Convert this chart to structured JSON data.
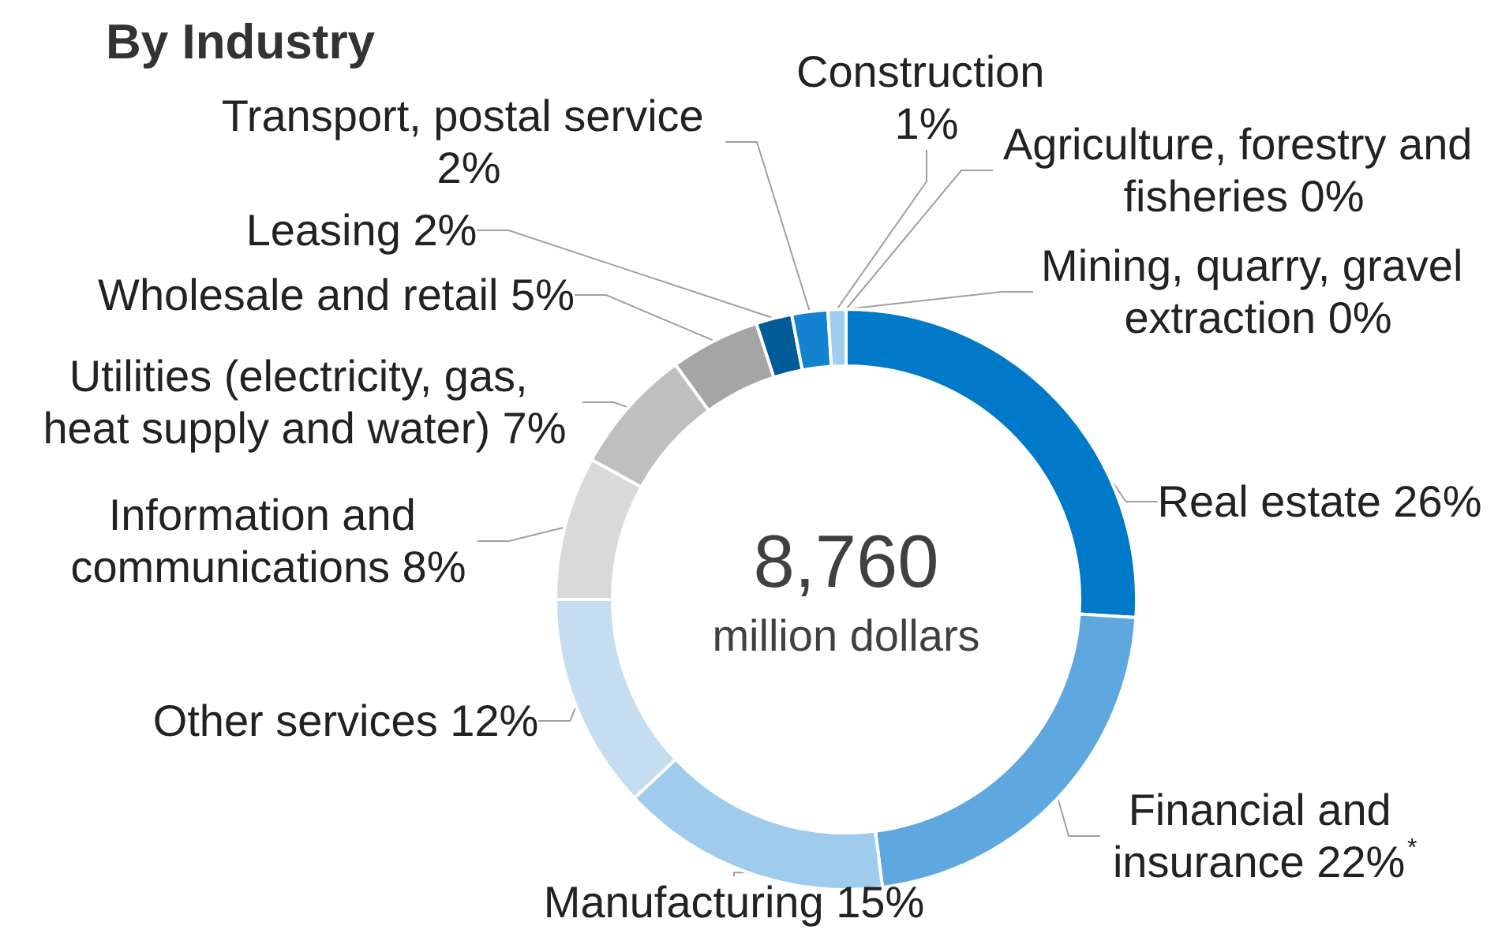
{
  "chart_data": {
    "type": "donut",
    "title": "By Industry",
    "categories": [
      "Real estate",
      "Financial and insurance",
      "Manufacturing",
      "Other services",
      "Information and communications",
      "Utilities (electricity, gas, heat supply and water)",
      "Wholesale and retail",
      "Leasing",
      "Transport, postal service",
      "Construction",
      "Agriculture, forestry and fisheries",
      "Mining, quarry, gravel extraction"
    ],
    "values": [
      26,
      22,
      15,
      12,
      8,
      7,
      5,
      2,
      2,
      1,
      0,
      0
    ],
    "value_labels": [
      "26%",
      "22%$^{*}$",
      "15%",
      "12%",
      "8%",
      "7%",
      "5%",
      "2%",
      "2%",
      "1%",
      "0%",
      "0%"
    ],
    "colors": [
      "#0079c8",
      "#5ea8df",
      "#9fcbec",
      "#c4ddf1",
      "#d9d9d9",
      "#bfbfbf",
      "#a5a5a5",
      "#005b96",
      "#1383cf",
      "#9fcbec",
      "#c4ddf1",
      "#ddeaf5"
    ],
    "annotations": [
      "8,760",
      "million dollars"
    ]
  }
}
